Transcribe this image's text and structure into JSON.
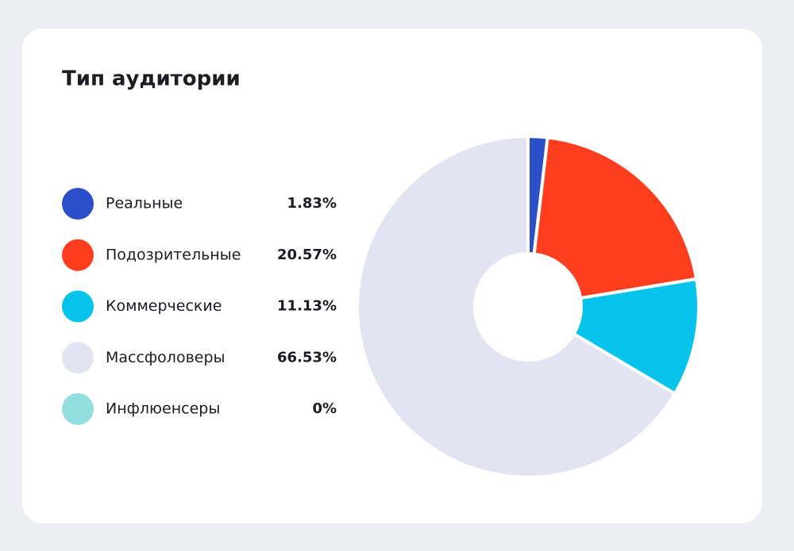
{
  "chart_data": {
    "type": "pie",
    "title": "Тип аудитории",
    "categories": [
      "Реальные",
      "Подозрительные",
      "Коммерческие",
      "Массфоловеры",
      "Инфлюенсеры"
    ],
    "values": [
      1.83,
      20.57,
      11.13,
      66.53,
      0
    ],
    "value_labels": [
      "1.83%",
      "20.57%",
      "11.13%",
      "66.53%",
      "0%"
    ],
    "colors": [
      "#2a4fc8",
      "#ff3e1f",
      "#05c3ea",
      "#e3e4f1",
      "#93dfdf"
    ],
    "donut": true
  }
}
